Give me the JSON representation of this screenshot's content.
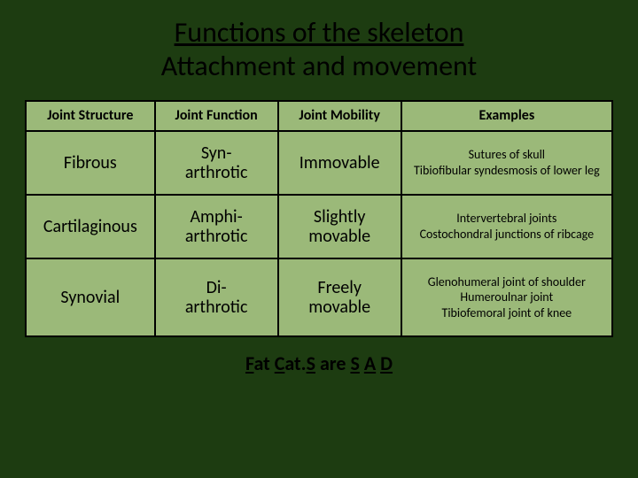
{
  "slide": {
    "title_line1": "Functions of the skeleton",
    "title_line2": "Attachment and movement",
    "background_color": "#1d3c11",
    "title_fontsize": 32,
    "title1_underline": true
  },
  "table": {
    "type": "table",
    "cell_bg": "#9bb979",
    "border_color": "#000000",
    "border_width": 2,
    "header_fontsize": 16,
    "struct_fontsize": 20,
    "func_fontsize": 20,
    "mob_fontsize": 20,
    "ex_fontsize": 14,
    "column_widths_pct": [
      22,
      21,
      21,
      36
    ],
    "columns": [
      "Joint Structure",
      "Joint Function",
      "Joint Mobility",
      "Examples"
    ],
    "rows": [
      {
        "structure": "Fibrous",
        "func_prefix": "Syn-",
        "func_suffix": "arthrotic",
        "mobility": "Immovable",
        "example_line1": "Sutures of skull",
        "example_line2": "Tibiofibular syndesmosis of lower leg",
        "example_line3": ""
      },
      {
        "structure": "Cartilaginous",
        "func_prefix": "Amphi-",
        "func_suffix": "arthrotic",
        "mobility_line1": "Slightly",
        "mobility_line2": "movable",
        "example_line1": "Intervertebral joints",
        "example_line2": "Costochondral junctions of ribcage",
        "example_line3": ""
      },
      {
        "structure": "Synovial",
        "func_prefix": "Di-",
        "func_suffix": "arthrotic",
        "mobility_line1": "Freely",
        "mobility_line2": "movable",
        "example_line1": "Glenohumeral joint of shoulder",
        "example_line2": "Humeroulnar joint",
        "example_line3": "Tibiofemoral joint of knee"
      }
    ]
  },
  "mnemonic": {
    "parts": {
      "p1": "F",
      "p2": "at ",
      "p3": "C",
      "p4": "at.",
      "p5": "S",
      "p6": " are ",
      "p7": "S",
      "p8": " ",
      "p9": "A",
      "p10": " ",
      "p11": "D"
    },
    "fontsize": 22
  }
}
